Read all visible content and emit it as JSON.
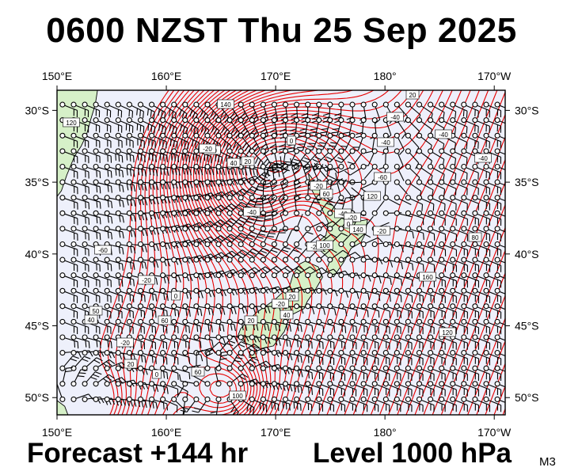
{
  "header": {
    "title": "0600 NZST Thu 25 Sep 2025"
  },
  "footer": {
    "forecast": "Forecast +144 hr",
    "level": "Level 1000 hPa",
    "model_code": "M3"
  },
  "map": {
    "lon_range": [
      150,
      191
    ],
    "lat_range": [
      -51.2,
      -28.6
    ],
    "lon_ticks": [
      {
        "value": 150,
        "label": "150°E"
      },
      {
        "value": 160,
        "label": "160°E"
      },
      {
        "value": 170,
        "label": "170°E"
      },
      {
        "value": 180,
        "label": "180°"
      },
      {
        "value": 190,
        "label": "170°W"
      }
    ],
    "lat_ticks": [
      {
        "value": -30,
        "label": "30°S"
      },
      {
        "value": -35,
        "label": "35°S"
      },
      {
        "value": -40,
        "label": "40°S"
      },
      {
        "value": -45,
        "label": "45°S"
      },
      {
        "value": -50,
        "label": "50°S"
      }
    ],
    "contour_labels": [
      "120",
      "140",
      "-20",
      "20",
      "0",
      "-20",
      "-40",
      "-20",
      "-20",
      "20",
      "40",
      "20",
      "-20",
      "-40",
      "-60",
      "-20",
      "0",
      "60",
      "50",
      "40",
      "20",
      "0",
      "-20",
      "-40",
      "-40",
      "-60",
      "-20",
      "20",
      "0",
      "-20",
      "40",
      "60",
      "100",
      "120",
      "140",
      "160",
      "120",
      "80",
      "-40",
      "-40",
      "60",
      "100"
    ],
    "colors": {
      "ocean": "#eef0fb",
      "land": "#d6f0c8",
      "contour": "#e60000",
      "wind_barb": "#000000",
      "frame": "#000000"
    }
  }
}
